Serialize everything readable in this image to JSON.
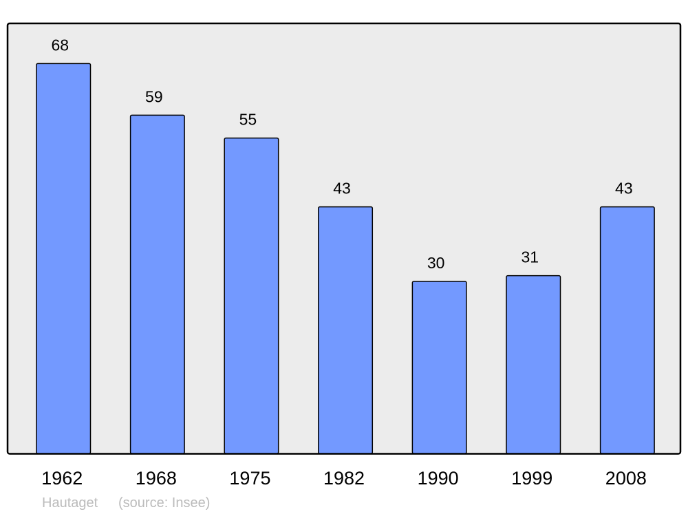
{
  "chart_data": {
    "type": "bar",
    "categories": [
      "1962",
      "1968",
      "1975",
      "1982",
      "1990",
      "1999",
      "2008"
    ],
    "values": [
      68,
      59,
      55,
      43,
      30,
      31,
      43
    ],
    "title": "",
    "xlabel": "",
    "ylabel": "",
    "ylim": [
      0,
      75
    ],
    "grid": false,
    "data_labels": true,
    "colors": {
      "bar": "#7399ff",
      "plot_background": "#ececec",
      "border": "#000000"
    }
  },
  "footer": {
    "place": "Hautaget",
    "source": "(source: Insee)"
  }
}
